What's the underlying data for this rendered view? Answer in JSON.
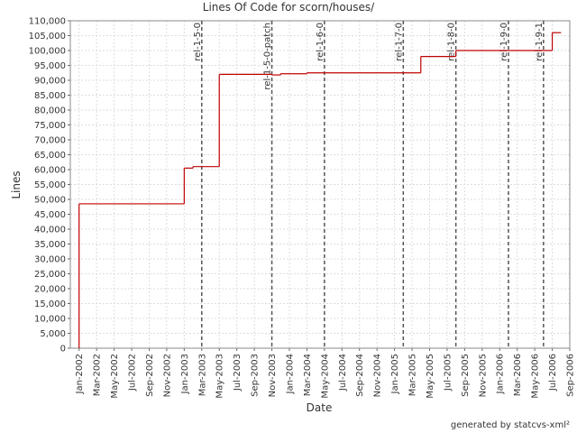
{
  "chart_data": {
    "type": "step",
    "title": "Lines Of Code for scorn/houses/",
    "x_label": "Date",
    "y_label": "Lines",
    "footer": "generated by statcvs-xml²",
    "color": "#c00000",
    "grid": true,
    "x": [
      "2002-01",
      "2002-01",
      "2003-01",
      "2003-02",
      "2003-05",
      "2003-05",
      "2003-11",
      "2003-12",
      "2004-03",
      "2005-04",
      "2005-08",
      "2006-07",
      "2006-08"
    ],
    "values": [
      0,
      48500,
      60500,
      61000,
      81500,
      92000,
      91800,
      92200,
      92500,
      98000,
      100000,
      106000,
      106000
    ],
    "markers": [
      {
        "label": "rel-1-5-0",
        "x": "2003-03"
      },
      {
        "label": "rel-1-5-0-patch",
        "x": "2003-11"
      },
      {
        "label": "rel-1-6-0",
        "x": "2004-05"
      },
      {
        "label": "rel-1-7-0",
        "x": "2005-02"
      },
      {
        "label": "rel-1-8-0",
        "x": "2005-08"
      },
      {
        "label": "rel-1-9-0",
        "x": "2006-02"
      },
      {
        "label": "rel-1-9-1",
        "x": "2006-06"
      }
    ],
    "xlim": [
      "2001-12",
      "2006-09"
    ],
    "xticks": [
      {
        "value": "2002-01",
        "label": "Jan-2002"
      },
      {
        "value": "2002-03",
        "label": "Mar-2002"
      },
      {
        "value": "2002-05",
        "label": "May-2002"
      },
      {
        "value": "2002-07",
        "label": "Jul-2002"
      },
      {
        "value": "2002-09",
        "label": "Sep-2002"
      },
      {
        "value": "2002-11",
        "label": "Nov-2002"
      },
      {
        "value": "2003-01",
        "label": "Jan-2003"
      },
      {
        "value": "2003-03",
        "label": "Mar-2003"
      },
      {
        "value": "2003-05",
        "label": "May-2003"
      },
      {
        "value": "2003-07",
        "label": "Jul-2003"
      },
      {
        "value": "2003-09",
        "label": "Sep-2003"
      },
      {
        "value": "2003-11",
        "label": "Nov-2003"
      },
      {
        "value": "2004-01",
        "label": "Jan-2004"
      },
      {
        "value": "2004-03",
        "label": "Mar-2004"
      },
      {
        "value": "2004-05",
        "label": "May-2004"
      },
      {
        "value": "2004-07",
        "label": "Jul-2004"
      },
      {
        "value": "2004-09",
        "label": "Sep-2004"
      },
      {
        "value": "2004-11",
        "label": "Nov-2004"
      },
      {
        "value": "2005-01",
        "label": "Jan-2005"
      },
      {
        "value": "2005-03",
        "label": "Mar-2005"
      },
      {
        "value": "2005-05",
        "label": "May-2005"
      },
      {
        "value": "2005-07",
        "label": "Jul-2005"
      },
      {
        "value": "2005-09",
        "label": "Sep-2005"
      },
      {
        "value": "2005-11",
        "label": "Nov-2005"
      },
      {
        "value": "2006-01",
        "label": "Jan-2006"
      },
      {
        "value": "2006-03",
        "label": "Mar-2006"
      },
      {
        "value": "2006-05",
        "label": "May-2006"
      },
      {
        "value": "2006-07",
        "label": "Jul-2006"
      },
      {
        "value": "2006-09",
        "label": "Sep-2006"
      }
    ],
    "ylim": [
      0,
      110000
    ],
    "yticks": [
      0,
      {
        "value": 5000,
        "label": "5,000"
      },
      {
        "value": 10000,
        "label": "10,000"
      },
      {
        "value": 15000,
        "label": "15,000"
      },
      {
        "value": 20000,
        "label": "20,000"
      },
      {
        "value": 25000,
        "label": "25,000"
      },
      {
        "value": 30000,
        "label": "30,000"
      },
      {
        "value": 35000,
        "label": "35,000"
      },
      {
        "value": 40000,
        "label": "40,000"
      },
      {
        "value": 45000,
        "label": "45,000"
      },
      {
        "value": 50000,
        "label": "50,000"
      },
      {
        "value": 55000,
        "label": "55,000"
      },
      {
        "value": 60000,
        "label": "60,000"
      },
      {
        "value": 65000,
        "label": "65,000"
      },
      {
        "value": 70000,
        "label": "70,000"
      },
      {
        "value": 75000,
        "label": "75,000"
      },
      {
        "value": 80000,
        "label": "80,000"
      },
      {
        "value": 85000,
        "label": "85,000"
      },
      {
        "value": 90000,
        "label": "90,000"
      },
      {
        "value": 95000,
        "label": "95,000"
      },
      {
        "value": 100000,
        "label": "100,000"
      },
      {
        "value": 105000,
        "label": "105,000"
      },
      {
        "value": 110000,
        "label": "110,000"
      }
    ]
  }
}
